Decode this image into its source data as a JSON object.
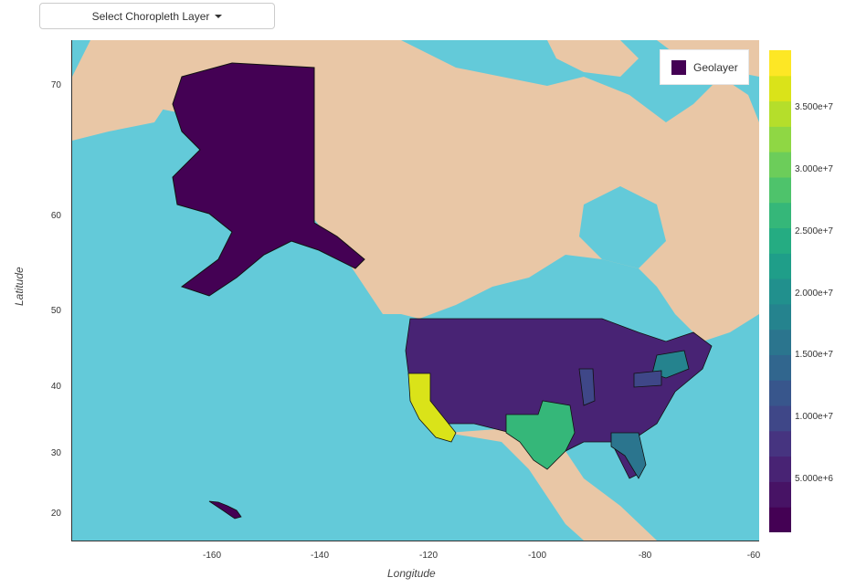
{
  "dropdown": {
    "label": "Select Choropleth Layer",
    "icon": "caret-down-icon"
  },
  "legend": {
    "label": "Geolayer",
    "swatch_color": "#440154"
  },
  "axes": {
    "xlabel": "Longitude",
    "ylabel": "Latitude",
    "xticks": [
      "-160",
      "-140",
      "-120",
      "-100",
      "-80",
      "-60"
    ],
    "yticks": [
      "70",
      "60",
      "50",
      "40",
      "30",
      "20"
    ]
  },
  "colorbar": {
    "labels": [
      "3.500e+7",
      "3.000e+7",
      "2.500e+7",
      "2.000e+7",
      "1.500e+7",
      "1.000e+7",
      "5.000e+6"
    ],
    "colors": [
      "#440154",
      "#471365",
      "#482374",
      "#463480",
      "#3f4788",
      "#38568c",
      "#31668e",
      "#2b758e",
      "#25838e",
      "#21908d",
      "#1f9e89",
      "#25ac82",
      "#35b779",
      "#4ec36b",
      "#6ccd5a",
      "#8fd744",
      "#b5de2b",
      "#dae319",
      "#fde725"
    ]
  },
  "chart_data": {
    "type": "choropleth map",
    "x_range": [
      -180,
      -60
    ],
    "y_range": [
      17,
      75
    ],
    "color_range": [
      0,
      39500000
    ],
    "legend_entries": [
      "Geolayer"
    ],
    "highlighted_values": {
      "California": 39000000,
      "Texas": 28000000,
      "New York": 19500000,
      "Florida": 20000000,
      "Pennsylvania": 12800000,
      "Illinois": 12800000,
      "Ohio": 11600000
    }
  }
}
